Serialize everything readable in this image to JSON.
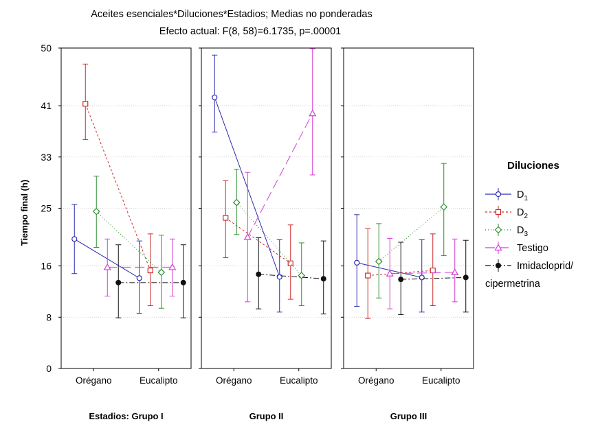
{
  "chart_data": {
    "type": "line",
    "title": "Aceites esenciales*Diluciones*Estadios; Medias no ponderadas",
    "subtitle": "Efecto actual: F(8, 58)=6.1735, p=.00001",
    "ylabel": "Tiempo final (h)",
    "ylim": [
      0,
      50
    ],
    "yticks": [
      0,
      8,
      16,
      25,
      33,
      41,
      50
    ],
    "grid": true,
    "categories": [
      "Orégano",
      "Eucalipto"
    ],
    "panels": [
      {
        "label": "Estadios: Grupo I"
      },
      {
        "label": "Grupo II"
      },
      {
        "label": "Grupo III"
      }
    ],
    "legend": {
      "title": "Diluciones",
      "placement": "right",
      "items": [
        {
          "main": "D",
          "sub": "1"
        },
        {
          "main": "D",
          "sub": "2"
        },
        {
          "main": "D",
          "sub": "3"
        },
        {
          "main": "Testigo",
          "sub": ""
        },
        {
          "main": "Imidacloprid/",
          "sub": ""
        }
      ],
      "extra_line": "cipermetrina"
    },
    "series": [
      {
        "name": "D1",
        "color": "#2b2bb0",
        "dash": "",
        "marker": "circle",
        "values": [
          [
            20.2,
            14.1
          ],
          [
            42.3,
            14.3
          ],
          [
            16.5,
            14.2
          ]
        ],
        "lower": [
          [
            14.8,
            8.6
          ],
          [
            36.9,
            8.8
          ],
          [
            9.7,
            8.8
          ]
        ],
        "upper": [
          [
            25.6,
            19.9
          ],
          [
            48.9,
            20.1
          ],
          [
            24.0,
            20.1
          ]
        ]
      },
      {
        "name": "D2",
        "color": "#cc2a2a",
        "dash": "3,3",
        "marker": "square",
        "values": [
          [
            41.3,
            15.3
          ],
          [
            23.5,
            16.4
          ],
          [
            14.5,
            15.3
          ]
        ],
        "lower": [
          [
            35.7,
            9.8
          ],
          [
            17.3,
            10.8
          ],
          [
            7.8,
            9.8
          ]
        ],
        "upper": [
          [
            47.5,
            21.0
          ],
          [
            29.3,
            22.4
          ],
          [
            21.8,
            21.0
          ]
        ]
      },
      {
        "name": "D3",
        "color": "#2f8f2f",
        "dash": "1,3",
        "marker": "diamond",
        "values": [
          [
            24.5,
            15.0
          ],
          [
            25.9,
            14.5
          ],
          [
            16.7,
            25.2
          ]
        ],
        "lower": [
          [
            18.9,
            9.4
          ],
          [
            20.9,
            9.8
          ],
          [
            11.0,
            17.6
          ]
        ],
        "upper": [
          [
            30.0,
            20.8
          ],
          [
            31.1,
            19.6
          ],
          [
            22.6,
            32.0
          ]
        ]
      },
      {
        "name": "Testigo",
        "color": "#d43cd4",
        "dash": "14,6",
        "marker": "triangle",
        "values": [
          [
            15.8,
            15.8
          ],
          [
            20.5,
            39.8
          ],
          [
            14.8,
            15.0
          ]
        ],
        "lower": [
          [
            11.3,
            11.3
          ],
          [
            10.4,
            30.2
          ],
          [
            9.3,
            10.4
          ]
        ],
        "upper": [
          [
            20.2,
            20.2
          ],
          [
            30.6,
            49.9
          ],
          [
            20.3,
            20.2
          ]
        ]
      },
      {
        "name": "Imidacloprid/cipermetrina",
        "color": "#111111",
        "dash": "8,3,2,3",
        "marker": "dot",
        "values": [
          [
            13.4,
            13.4
          ],
          [
            14.7,
            14.0
          ],
          [
            13.9,
            14.2
          ]
        ],
        "lower": [
          [
            7.9,
            7.9
          ],
          [
            9.3,
            8.5
          ],
          [
            8.4,
            8.8
          ]
        ],
        "upper": [
          [
            19.3,
            19.3
          ],
          [
            20.4,
            19.9
          ],
          [
            19.7,
            20.0
          ]
        ]
      }
    ]
  }
}
